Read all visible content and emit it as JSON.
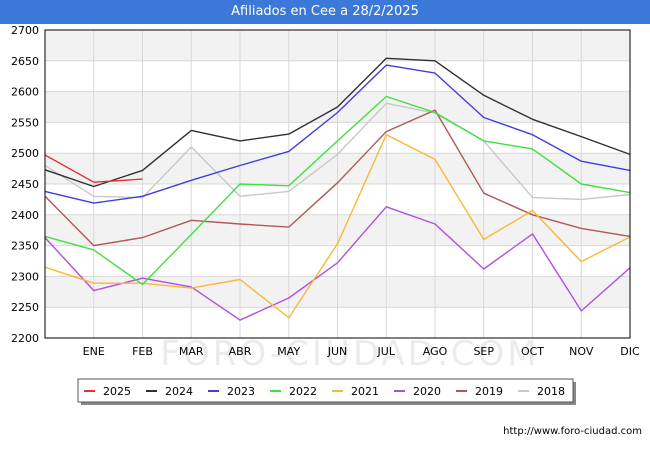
{
  "title": "Afiliados en Cee a 28/2/2025",
  "source": "http://www.foro-ciudad.com",
  "watermark": "FORO-CIUDAD.COM",
  "chart_data": {
    "type": "line",
    "title": "Afiliados en Cee a 28/2/2025",
    "xlabel": "",
    "ylabel": "",
    "categories": [
      "",
      "ENE",
      "FEB",
      "MAR",
      "ABR",
      "MAY",
      "JUN",
      "JUL",
      "AGO",
      "SEP",
      "OCT",
      "NOV",
      "DIC"
    ],
    "ylim": [
      2200,
      2700
    ],
    "yticks": [
      2200,
      2250,
      2300,
      2350,
      2400,
      2450,
      2500,
      2550,
      2600,
      2650,
      2700
    ],
    "grid": true,
    "legend_position": "bottom",
    "series": [
      {
        "name": "2025",
        "color": "#e83030",
        "values": [
          2497,
          2453,
          2458,
          null,
          null,
          null,
          null,
          null,
          null,
          null,
          null,
          null,
          null
        ]
      },
      {
        "name": "2024",
        "color": "#303030",
        "values": [
          2473,
          2446,
          2472,
          2537,
          2520,
          2531,
          2575,
          2654,
          2650,
          2594,
          2555,
          2527,
          2498
        ]
      },
      {
        "name": "2023",
        "color": "#3f3fe0",
        "values": [
          2438,
          2419,
          2430,
          2456,
          2480,
          2503,
          2566,
          2643,
          2630,
          2558,
          2530,
          2487,
          2472
        ]
      },
      {
        "name": "2022",
        "color": "#40e040",
        "values": [
          2365,
          2343,
          2287,
          2368,
          2450,
          2447,
          2520,
          2592,
          2566,
          2520,
          2507,
          2450,
          2436
        ]
      },
      {
        "name": "2021",
        "color": "#f8b838",
        "values": [
          2315,
          2289,
          2289,
          2281,
          2295,
          2233,
          2353,
          2530,
          2490,
          2360,
          2407,
          2324,
          2364
        ]
      },
      {
        "name": "2020",
        "color": "#b050e0",
        "values": [
          2363,
          2277,
          2297,
          2283,
          2229,
          2265,
          2322,
          2413,
          2385,
          2312,
          2369,
          2244,
          2314
        ]
      },
      {
        "name": "2019",
        "color": "#b05858",
        "values": [
          2430,
          2350,
          2363,
          2391,
          2385,
          2380,
          2452,
          2535,
          2570,
          2435,
          2400,
          2378,
          2365
        ]
      },
      {
        "name": "2018",
        "color": "#c8c8c8",
        "values": [
          2480,
          2430,
          2428,
          2510,
          2430,
          2438,
          2498,
          2581,
          2565,
          2520,
          2428,
          2425,
          2433
        ]
      }
    ]
  }
}
